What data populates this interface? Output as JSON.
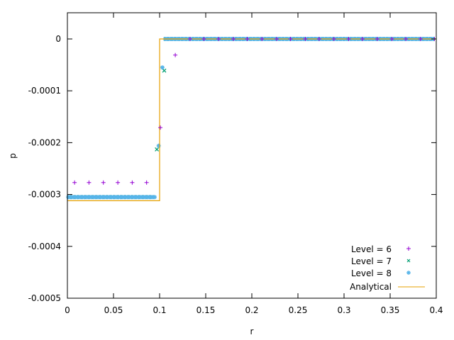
{
  "chart_data": {
    "type": "scatter",
    "title": "",
    "xlabel": "r",
    "ylabel": "p",
    "xlim": [
      0,
      0.4
    ],
    "ylim": [
      -0.0005,
      5e-05
    ],
    "grid": false,
    "legend_position": "bottom-right inside",
    "xticks": [
      0,
      0.05,
      0.1,
      0.15,
      0.2,
      0.25,
      0.3,
      0.35,
      0.4
    ],
    "xtick_labels": [
      "0",
      "0.05",
      "0.1",
      "0.15",
      "0.2",
      "0.25",
      "0.3",
      "0.35",
      "0.4"
    ],
    "yticks": [
      0,
      -0.0001,
      -0.0002,
      -0.0003,
      -0.0004,
      -0.0005
    ],
    "ytick_labels": [
      "0",
      "-0.0001",
      "-0.0002",
      "-0.0003",
      "-0.0004",
      "-0.0005"
    ],
    "series": [
      {
        "name": "Level = 6",
        "marker": "plus",
        "color": "#9400d3",
        "points": [
          [
            0.0078,
            -0.000277
          ],
          [
            0.0234,
            -0.000277
          ],
          [
            0.039,
            -0.000277
          ],
          [
            0.0547,
            -0.000277
          ],
          [
            0.0703,
            -0.000277
          ],
          [
            0.0859,
            -0.000277
          ],
          [
            0.1008,
            -0.000171
          ],
          [
            0.117,
            -3.1e-05
          ],
          [
            0.133,
            0.0
          ],
          [
            0.148,
            0.0
          ],
          [
            0.164,
            0.0
          ],
          [
            0.18,
            0.0
          ],
          [
            0.195,
            0.0
          ],
          [
            0.211,
            0.0
          ],
          [
            0.227,
            0.0
          ],
          [
            0.242,
            0.0
          ],
          [
            0.258,
            0.0
          ],
          [
            0.273,
            0.0
          ],
          [
            0.289,
            0.0
          ],
          [
            0.305,
            0.0
          ],
          [
            0.32,
            0.0
          ],
          [
            0.336,
            0.0
          ],
          [
            0.352,
            0.0
          ],
          [
            0.367,
            0.0
          ],
          [
            0.383,
            0.0
          ],
          [
            0.398,
            0.0
          ]
        ]
      },
      {
        "name": "Level = 7",
        "marker": "cross",
        "color": "#009e73",
        "step": 0.0039,
        "plateau_value": -0.000305,
        "plateau_range": [
          0.0,
          0.094
        ],
        "transition_points": [
          [
            0.097,
            -0.000213
          ],
          [
            0.105,
            -6.1e-05
          ]
        ],
        "zero_range": [
          0.107,
          0.398
        ]
      },
      {
        "name": "Level = 8",
        "marker": "star",
        "color": "#56b4e9",
        "step": 0.00195,
        "plateau_value": -0.000305,
        "plateau_range": [
          0.0,
          0.096
        ],
        "transition_points": [
          [
            0.099,
            -0.000206
          ],
          [
            0.103,
            -5.5e-05
          ]
        ],
        "zero_range": [
          0.106,
          0.398
        ]
      },
      {
        "name": "Analytical",
        "marker": "line",
        "color": "#e69f00",
        "points": [
          [
            0.0,
            -0.000312
          ],
          [
            0.1,
            -0.000312
          ],
          [
            0.1,
            0.0
          ],
          [
            0.4,
            0.0
          ]
        ]
      }
    ]
  },
  "legend": {
    "items": [
      {
        "label": "Level = 6"
      },
      {
        "label": "Level = 7"
      },
      {
        "label": "Level = 8"
      },
      {
        "label": "Analytical"
      }
    ]
  },
  "axes": {
    "xlabel": "r",
    "ylabel": "p"
  }
}
